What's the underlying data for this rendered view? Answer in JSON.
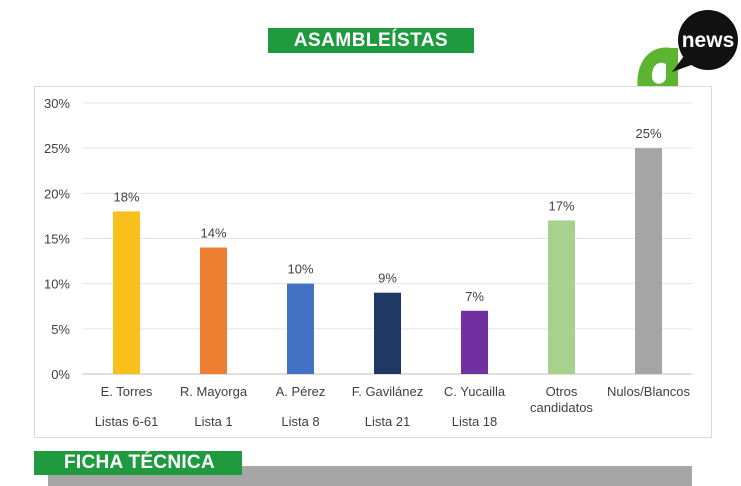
{
  "header": {
    "title": "ASAMBLEÍSTAS"
  },
  "logo": {
    "text": "news",
    "icon": "a-news-logo"
  },
  "footer": {
    "section_title": "FICHA TÉCNICA"
  },
  "colors": {
    "brand_green": "#1f9a3f",
    "bars": [
      "#f9c01d",
      "#ed7d31",
      "#4472c4",
      "#203864",
      "#7030a0",
      "#a9d18e",
      "#a5a5a5"
    ]
  },
  "chart_data": {
    "type": "bar",
    "categories": [
      [
        "E. Torres",
        "Listas 6-61"
      ],
      [
        "R. Mayorga",
        "Lista 1"
      ],
      [
        "A. Pérez",
        "Lista 8"
      ],
      [
        "F. Gavilánez",
        "Lista 21"
      ],
      [
        "C. Yucailla",
        "Lista 18"
      ],
      [
        "Otros",
        "candidatos"
      ],
      [
        "Nulos/Blancos"
      ]
    ],
    "values": [
      18,
      14,
      10,
      9,
      7,
      17,
      25
    ],
    "value_labels": [
      "18%",
      "14%",
      "10%",
      "9%",
      "7%",
      "17%",
      "25%"
    ],
    "ylim": [
      0,
      30
    ],
    "yticks": [
      "0%",
      "5%",
      "10%",
      "15%",
      "20%",
      "25%",
      "30%"
    ],
    "grid": true,
    "legend": false
  }
}
